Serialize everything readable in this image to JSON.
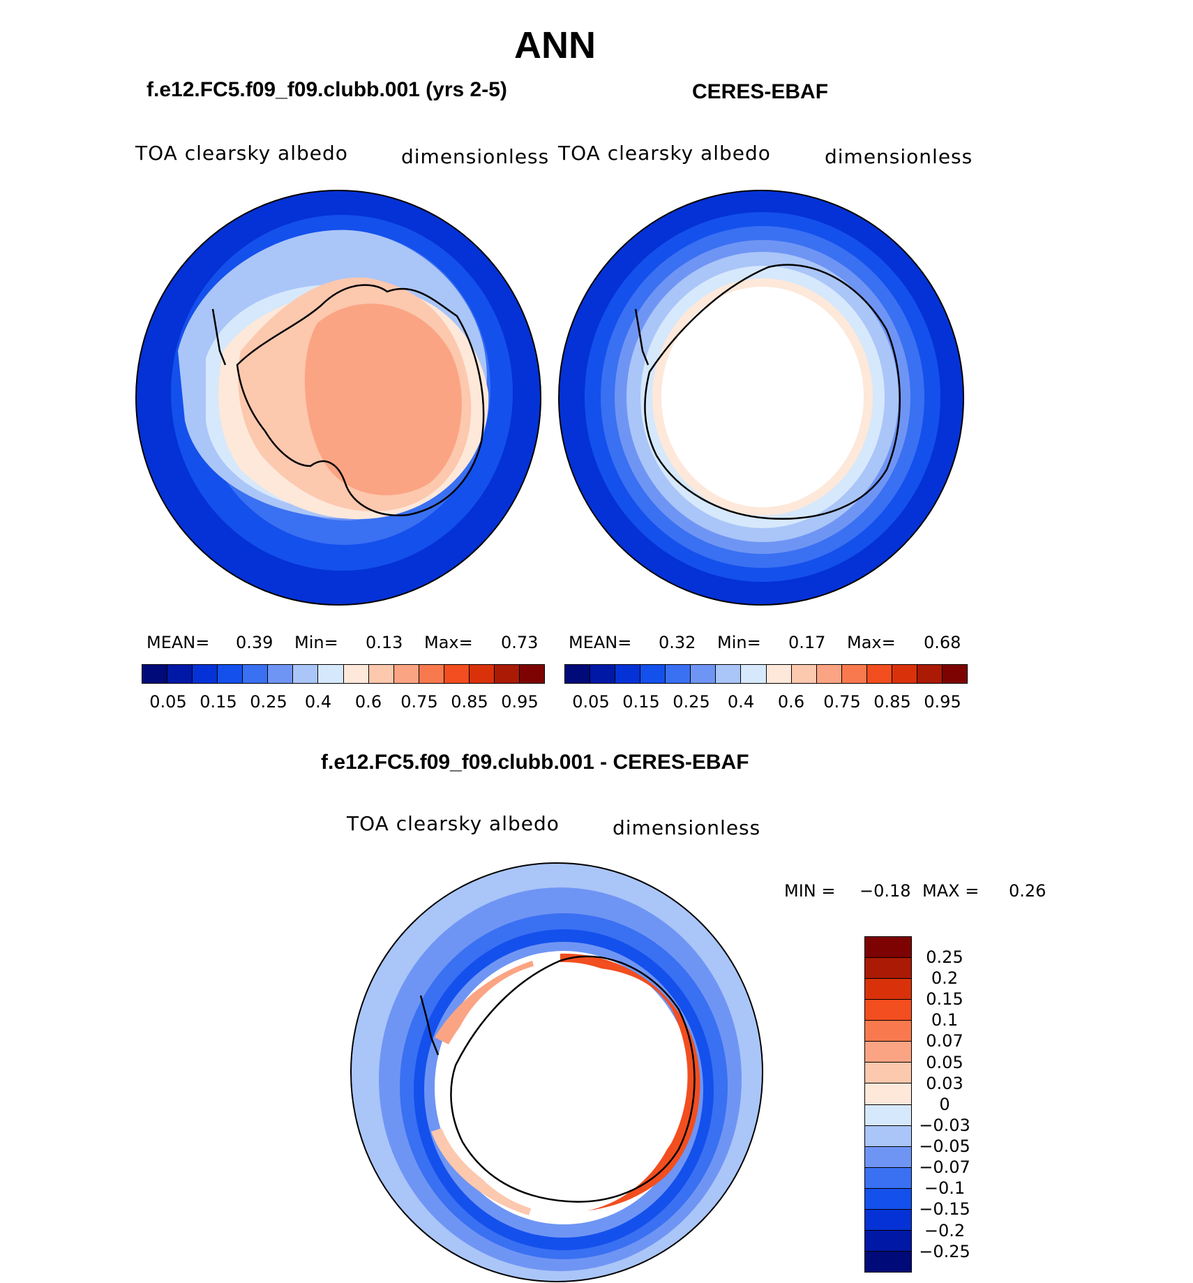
{
  "title": "ANN",
  "panels": [
    {
      "title": "f.e12.FC5.f09_f09.clubb.001 (yrs 2-5)",
      "variable": "TOA clearsky albedo",
      "units": "dimensionless",
      "stats": {
        "mean_label": "MEAN=",
        "mean": "0.39",
        "min_label": "Min=",
        "min": "0.13",
        "max_label": "Max=",
        "max": "0.73"
      }
    },
    {
      "title": "CERES-EBAF",
      "variable": "TOA clearsky albedo",
      "units": "dimensionless",
      "stats": {
        "mean_label": "MEAN=",
        "mean": "0.32",
        "min_label": "Min=",
        "min": "0.17",
        "max_label": "Max=",
        "max": "0.68"
      }
    }
  ],
  "diff": {
    "title": "f.e12.FC5.f09_f09.clubb.001 - CERES-EBAF",
    "variable": "TOA clearsky albedo",
    "units": "dimensionless",
    "min_label": "MIN =",
    "min": "−0.18",
    "max_label": "MAX =",
    "max": "0.26"
  },
  "colorbar_top": {
    "colors": [
      "#000a78",
      "#0018a6",
      "#0432d6",
      "#1450ec",
      "#3a70f2",
      "#6f95f4",
      "#aac5f8",
      "#d6e8fb",
      "#fde8da",
      "#fcc8ae",
      "#fba483",
      "#f9794f",
      "#f24e1f",
      "#d9320b",
      "#aa1a05",
      "#7d0303"
    ],
    "tick_labels": [
      "0.05",
      "0.15",
      "0.25",
      "0.4",
      "0.6",
      "0.75",
      "0.85",
      "0.95"
    ]
  },
  "colorbar_diff": {
    "colors": [
      "#7d0303",
      "#aa1a05",
      "#d9320b",
      "#f24e1f",
      "#f9794f",
      "#fba483",
      "#fcc8ae",
      "#fde8da",
      "#d6e8fb",
      "#aac5f8",
      "#6f95f4",
      "#3a70f2",
      "#1450ec",
      "#0432d6",
      "#0018a6",
      "#000a78"
    ],
    "tick_labels": [
      "0.25",
      "0.2",
      "0.15",
      "0.1",
      "0.07",
      "0.05",
      "0.03",
      "0",
      "−0.03",
      "−0.05",
      "−0.07",
      "−0.1",
      "−0.15",
      "−0.2",
      "−0.25"
    ]
  },
  "icons": [
    "polar-map-icon"
  ]
}
